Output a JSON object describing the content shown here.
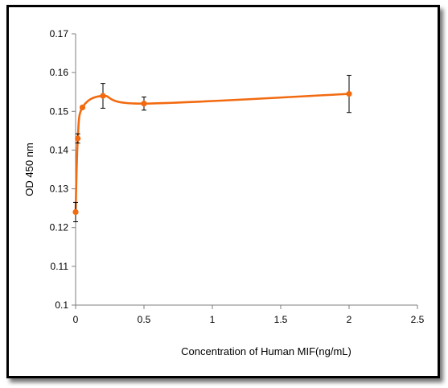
{
  "chart_data": {
    "type": "scatter",
    "title": "",
    "xlabel": "Concentration of Human MIF(ng/mL)",
    "ylabel": "OD 450 nm",
    "xlim": [
      0,
      2.5
    ],
    "ylim": [
      0.1,
      0.17
    ],
    "xticks": [
      0,
      0.5,
      1,
      1.5,
      2,
      2.5
    ],
    "xtick_labels": [
      "0",
      "0.5",
      "1",
      "1.5",
      "2",
      "2.5"
    ],
    "yticks": [
      0.1,
      0.11,
      0.12,
      0.13,
      0.14,
      0.15,
      0.16,
      0.17
    ],
    "ytick_labels": [
      "0.1",
      "0.11",
      "0.12",
      "0.13",
      "0.14",
      "0.15",
      "0.16",
      "0.17"
    ],
    "grid": false,
    "legend": "none",
    "smooth_line": true,
    "series": [
      {
        "color": "#F26A10",
        "points": [
          {
            "x": 0,
            "y": 0.124,
            "err": 0.0025
          },
          {
            "x": 0.016,
            "y": 0.143,
            "err": 0.0012
          },
          {
            "x": 0.05,
            "y": 0.151,
            "err": 0
          },
          {
            "x": 0.2,
            "y": 0.154,
            "err": 0.0032
          },
          {
            "x": 0.5,
            "y": 0.152,
            "err": 0.0017
          },
          {
            "x": 2,
            "y": 0.1545,
            "err": 0.0048
          }
        ]
      }
    ]
  }
}
